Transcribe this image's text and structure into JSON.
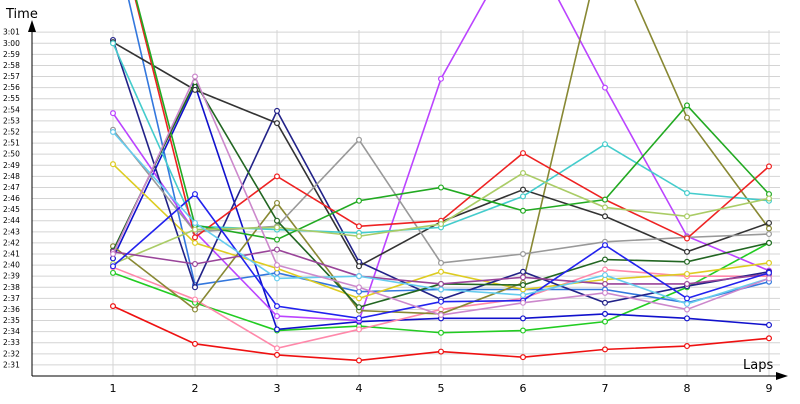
{
  "chart_data": {
    "type": "line",
    "ylabel": "Time",
    "xlabel": "Laps",
    "x": [
      1,
      2,
      3,
      4,
      5,
      6,
      7,
      8,
      9
    ],
    "y_ticks": [
      "2:31",
      "2:32",
      "2:33",
      "2:34",
      "2:35",
      "2:36",
      "2:37",
      "2:38",
      "2:39",
      "2:40",
      "2:41",
      "2:42",
      "2:43",
      "2:44",
      "2:45",
      "2:46",
      "2:47",
      "2:48",
      "2:49",
      "2:50",
      "2:51",
      "2:52",
      "2:53",
      "2:54",
      "2:55",
      "2:56",
      "2:57",
      "2:58",
      "2:59",
      "3:00",
      "3:01"
    ],
    "ylim": [
      "2:30",
      "3:03"
    ],
    "grid": true,
    "series": [
      {
        "color": "#ee1111",
        "values": [
          "2:36.3",
          "2:32.9",
          "2:31.9",
          "2:31.4",
          "2:32.2",
          "2:31.7",
          "2:32.4",
          "2:32.7",
          "2:33.4"
        ]
      },
      {
        "color": "#22cc22",
        "values": [
          "2:39.3",
          "2:36.6",
          "2:34.1",
          "2:34.5",
          "2:33.9",
          "2:34.1",
          "2:34.9",
          "2:38.0",
          "2:42.0"
        ]
      },
      {
        "color": "#1111cc",
        "values": [
          "2:40.6",
          "2:56.2",
          "2:34.2",
          "2:34.9",
          "2:35.2",
          "2:35.2",
          "2:35.6",
          "2:35.2",
          "2:34.6"
        ]
      },
      {
        "color": "#3377dd",
        "values": [
          "3:10.0",
          "2:38.2",
          "2:39.3",
          "2:37.6",
          "2:37.8",
          "2:37.8",
          "2:37.8",
          "2:36.6",
          "2:38.5"
        ]
      },
      {
        "color": "#ff88aa",
        "values": [
          "2:39.8",
          "2:36.9",
          "2:32.5",
          "2:34.2",
          "2:36.0",
          "2:37.0",
          "2:39.6",
          "2:39.0",
          "2:39.0"
        ]
      },
      {
        "color": "#bb44ff",
        "values": [
          "2:53.7",
          "2:43.0",
          "2:35.4",
          "2:35.0",
          "2:56.8",
          "3:10.0",
          "2:56.0",
          "2:42.6",
          "2:39.5"
        ]
      },
      {
        "color": "#ddcc22",
        "values": [
          "2:49.1",
          "2:42.0",
          "2:39.7",
          "2:37.0",
          "2:39.4",
          "2:37.8",
          "2:38.7",
          "2:39.2",
          "2:40.2"
        ]
      },
      {
        "color": "#888833",
        "values": [
          "2:41.7",
          "2:36.0",
          "2:45.6",
          "2:35.9",
          "2:35.6",
          "2:38.4",
          "3:10.0",
          "2:53.3",
          "2:43.3"
        ]
      },
      {
        "color": "#222288",
        "values": [
          "3:00.3",
          "2:38.0",
          "2:53.9",
          "2:40.3",
          "2:36.9",
          "2:39.4",
          "2:36.6",
          "2:38.1",
          "2:39.4"
        ]
      },
      {
        "color": "#333333",
        "values": [
          "3:00.1",
          "2:55.8",
          "2:52.8",
          "2:39.9",
          "2:43.9",
          "2:46.8",
          "2:44.4",
          "2:41.2",
          "2:43.8"
        ]
      },
      {
        "color": "#999999",
        "values": [
          "2:52.2",
          "2:43.0",
          "2:43.5",
          "2:51.3",
          "2:40.2",
          "2:41.0",
          "2:42.1",
          "2:42.5",
          "2:42.8"
        ]
      },
      {
        "color": "#44cccc",
        "values": [
          "3:00.0",
          "2:43.5",
          "2:43.2",
          "2:42.9",
          "2:43.4",
          "2:46.2",
          "2:50.9",
          "2:46.5",
          "2:45.8"
        ]
      },
      {
        "color": "#ee2222",
        "values": [
          "3:12.0",
          "2:42.5",
          "2:48.0",
          "2:43.5",
          "2:44.0",
          "2:50.1",
          "2:45.9",
          "2:42.4",
          "2:48.9"
        ]
      },
      {
        "color": "#22aa22",
        "values": [
          "3:12.0",
          "2:43.6",
          "2:42.3",
          "2:45.8",
          "2:47.0",
          "2:44.9",
          "2:45.9",
          "2:54.4",
          "2:46.4"
        ]
      },
      {
        "color": "#aacc66",
        "values": [
          "2:40.1",
          "2:43.2",
          "2:43.4",
          "2:42.6",
          "2:43.7",
          "2:48.3",
          "2:45.2",
          "2:44.4",
          "2:46.0"
        ]
      },
      {
        "color": "#226622",
        "values": [
          "2:41.3",
          "2:56.5",
          "2:44.0",
          "2:36.2",
          "2:38.3",
          "2:38.2",
          "2:40.5",
          "2:40.3",
          "2:42.0"
        ]
      },
      {
        "color": "#994499",
        "values": [
          "2:41.2",
          "2:40.1",
          "2:41.4",
          "2:39.0",
          "2:38.3",
          "2:38.9",
          "2:38.3",
          "2:38.3",
          "2:39.2"
        ]
      },
      {
        "color": "#2222ee",
        "values": [
          "2:39.9",
          "2:46.4",
          "2:36.3",
          "2:35.2",
          "2:36.7",
          "2:36.8",
          "2:41.8",
          "2:37.0",
          "2:39.3"
        ]
      },
      {
        "color": "#66ccee",
        "values": [
          "2:52.0",
          "2:43.8",
          "2:38.8",
          "2:39.0",
          "2:37.8",
          "2:37.3",
          "2:39.1",
          "2:36.5",
          "2:38.8"
        ]
      },
      {
        "color": "#cc88cc",
        "values": [
          "2:41.0",
          "2:57.0",
          "2:40.0",
          "2:38.0",
          "2:35.5",
          "2:36.6",
          "2:37.5",
          "2:36.0",
          "2:38.8"
        ]
      }
    ]
  }
}
